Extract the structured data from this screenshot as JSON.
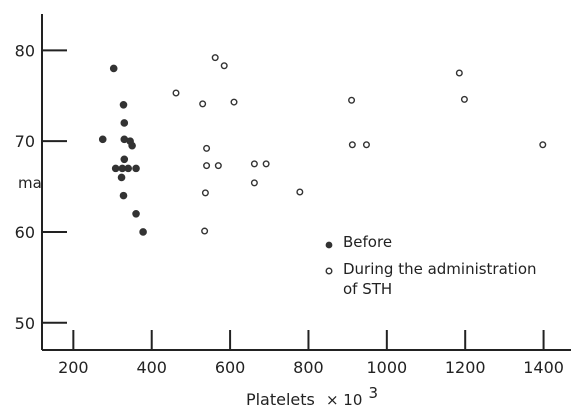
{
  "chart_data": {
    "type": "scatter",
    "title": "",
    "xlabel": "Platelets",
    "xlabel_multiplier": "× 10",
    "xlabel_exponent": "3",
    "ylabel": "ma",
    "xlim": [
      120,
      1470
    ],
    "ylim": [
      47,
      84
    ],
    "x_ticks": [
      200,
      400,
      600,
      800,
      1000,
      1200,
      1400
    ],
    "y_ticks": [
      50,
      60,
      70,
      80
    ],
    "grid": false,
    "legend_position": "right-center",
    "series": [
      {
        "name": "Before",
        "marker": "filled",
        "points": [
          [
            303,
            78
          ],
          [
            328,
            74
          ],
          [
            330,
            72
          ],
          [
            275,
            70.2
          ],
          [
            330,
            70.2
          ],
          [
            345,
            70
          ],
          [
            350,
            69.5
          ],
          [
            330,
            68
          ],
          [
            308,
            67
          ],
          [
            325,
            67
          ],
          [
            340,
            67
          ],
          [
            360,
            67
          ],
          [
            323,
            66
          ],
          [
            328,
            64
          ],
          [
            360,
            62
          ],
          [
            378,
            60
          ]
        ]
      },
      {
        "name": "During the administration of STH",
        "marker": "open",
        "points": [
          [
            462,
            75.3
          ],
          [
            562,
            79.2
          ],
          [
            585,
            78.3
          ],
          [
            530,
            74.1
          ],
          [
            610,
            74.3
          ],
          [
            540,
            69.2
          ],
          [
            540,
            67.3
          ],
          [
            570,
            67.3
          ],
          [
            662,
            67.5
          ],
          [
            692,
            67.5
          ],
          [
            662,
            65.4
          ],
          [
            537,
            64.3
          ],
          [
            778,
            64.4
          ],
          [
            535,
            60.1
          ],
          [
            910,
            74.5
          ],
          [
            912,
            69.6
          ],
          [
            948,
            69.6
          ],
          [
            1185,
            77.5
          ],
          [
            1198,
            74.6
          ],
          [
            1398,
            69.6
          ]
        ]
      }
    ]
  },
  "colors": {
    "axis": "#222222",
    "marker": "#333333",
    "background": "#ffffff"
  }
}
